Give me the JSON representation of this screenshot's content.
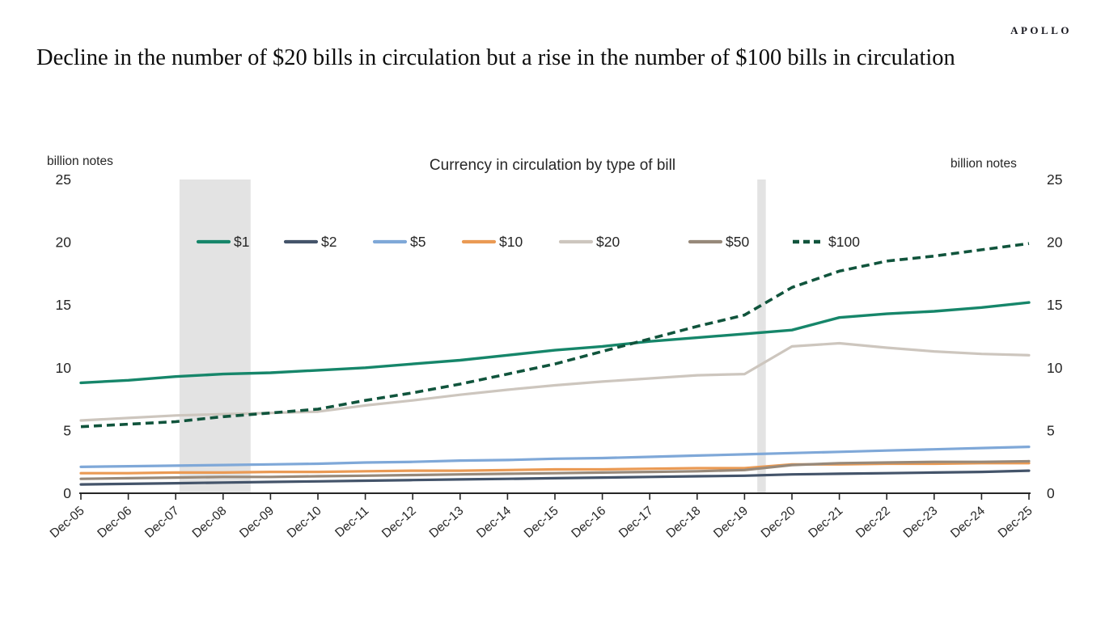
{
  "logo": "APOLLO",
  "page_title": "Decline in the number of $20 bills in circulation but a rise in the number of $100 bills in circulation",
  "chart_data": {
    "type": "line",
    "title": "Currency in circulation by type of bill",
    "left_axis_label": "billion notes",
    "right_axis_label": "billion notes",
    "ylim": [
      0,
      25
    ],
    "yticks": [
      0,
      5,
      10,
      15,
      20,
      25
    ],
    "grid": "off",
    "legend_position": "top",
    "categories": [
      "Dec-05",
      "Dec-06",
      "Dec-07",
      "Dec-08",
      "Dec-09",
      "Dec-10",
      "Dec-11",
      "Dec-12",
      "Dec-13",
      "Dec-14",
      "Dec-15",
      "Dec-16",
      "Dec-17",
      "Dec-18",
      "Dec-19",
      "Dec-20",
      "Dec-21",
      "Dec-22",
      "Dec-23",
      "Dec-24",
      "Dec-25"
    ],
    "series": [
      {
        "name": "$1",
        "color": "#16866A",
        "style": "solid",
        "values": [
          8.8,
          9.0,
          9.3,
          9.5,
          9.6,
          9.8,
          10.0,
          10.3,
          10.6,
          11.0,
          11.4,
          11.7,
          12.1,
          12.4,
          12.7,
          13.0,
          14.0,
          14.3,
          14.5,
          14.8,
          15.2
        ]
      },
      {
        "name": "$2",
        "color": "#44546A",
        "style": "solid",
        "values": [
          0.7,
          0.75,
          0.8,
          0.85,
          0.9,
          0.95,
          1.0,
          1.05,
          1.1,
          1.15,
          1.2,
          1.25,
          1.3,
          1.35,
          1.4,
          1.5,
          1.55,
          1.6,
          1.65,
          1.7,
          1.8
        ]
      },
      {
        "name": "$5",
        "color": "#7FA8D8",
        "style": "solid",
        "values": [
          2.1,
          2.15,
          2.2,
          2.25,
          2.3,
          2.35,
          2.45,
          2.5,
          2.6,
          2.65,
          2.75,
          2.8,
          2.9,
          3.0,
          3.1,
          3.2,
          3.3,
          3.4,
          3.5,
          3.6,
          3.7
        ]
      },
      {
        "name": "$10",
        "color": "#EA9A54",
        "style": "solid",
        "values": [
          1.6,
          1.6,
          1.65,
          1.65,
          1.7,
          1.7,
          1.75,
          1.8,
          1.8,
          1.85,
          1.9,
          1.9,
          1.95,
          2.0,
          2.0,
          2.3,
          2.3,
          2.35,
          2.35,
          2.4,
          2.4
        ]
      },
      {
        "name": "$20",
        "color": "#CDC6BE",
        "style": "solid",
        "values": [
          5.8,
          6.0,
          6.2,
          6.3,
          6.4,
          6.5,
          7.0,
          7.4,
          7.85,
          8.25,
          8.6,
          8.9,
          9.15,
          9.4,
          9.5,
          11.7,
          11.95,
          11.6,
          11.3,
          11.1,
          11.0
        ]
      },
      {
        "name": "$50",
        "color": "#97897A",
        "style": "solid",
        "values": [
          1.15,
          1.2,
          1.25,
          1.3,
          1.3,
          1.35,
          1.4,
          1.45,
          1.5,
          1.55,
          1.6,
          1.65,
          1.7,
          1.75,
          1.85,
          2.25,
          2.4,
          2.45,
          2.5,
          2.5,
          2.55
        ]
      },
      {
        "name": "$100",
        "color": "#10543C",
        "style": "dashed",
        "values": [
          5.3,
          5.5,
          5.7,
          6.1,
          6.4,
          6.7,
          7.4,
          8.0,
          8.7,
          9.5,
          10.3,
          11.3,
          12.3,
          13.3,
          14.2,
          16.4,
          17.7,
          18.5,
          18.9,
          19.4,
          19.9
        ]
      }
    ],
    "recession_bands": [
      {
        "from_index": 2.08,
        "to_index": 3.58
      },
      {
        "from_index": 14.27,
        "to_index": 14.45
      }
    ],
    "band_color": "#E3E3E3",
    "axis_color": "#262626"
  }
}
